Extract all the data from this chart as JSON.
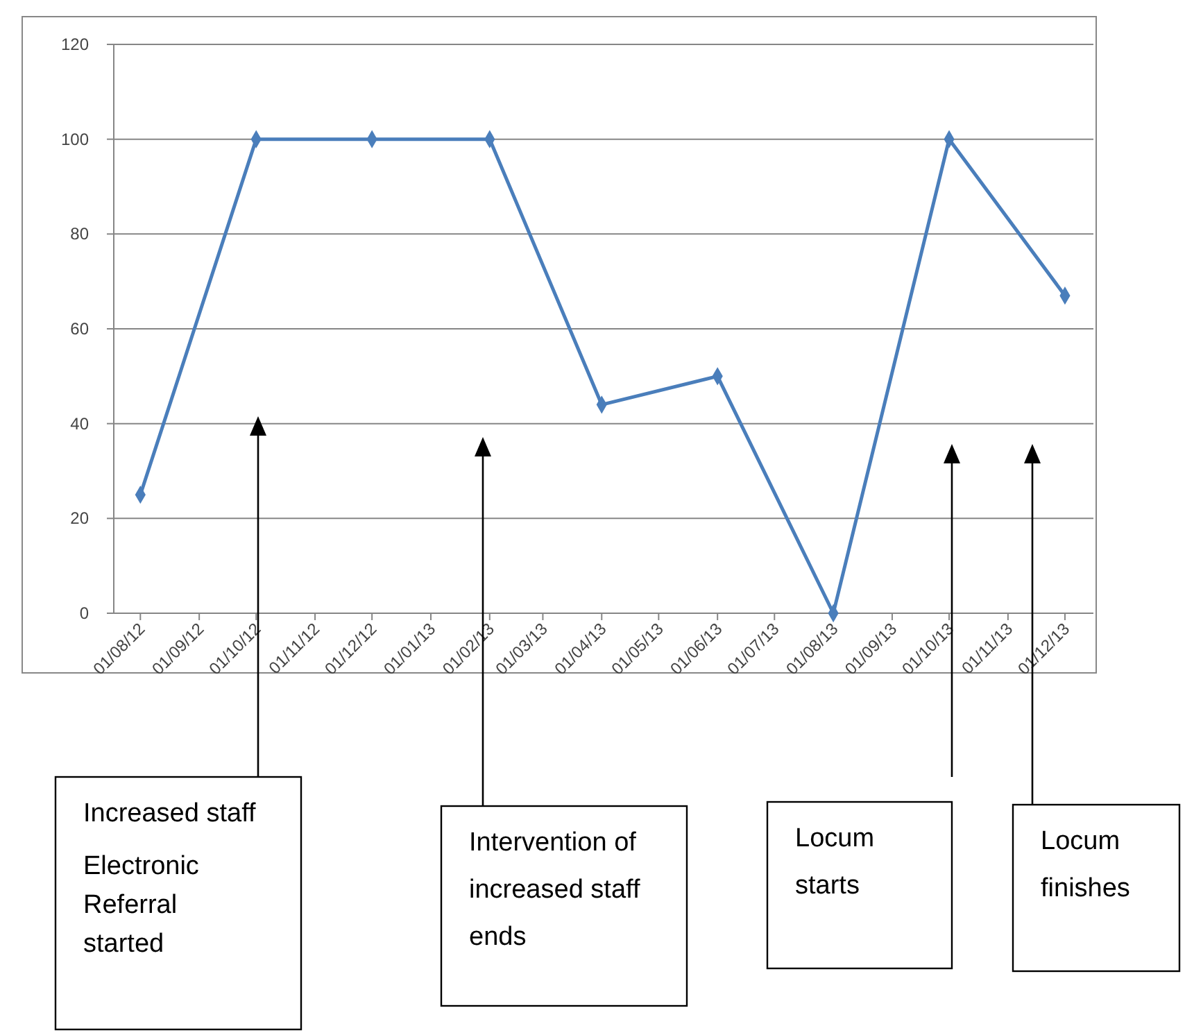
{
  "chart_data": {
    "type": "line",
    "x": [
      "2012-08",
      "2012-10",
      "2012-12",
      "2013-02",
      "2013-04",
      "2013-06",
      "2013-08",
      "2013-10",
      "2013-12"
    ],
    "series": [
      {
        "color": "#4a7ebb",
        "values": [
          25,
          100,
          100,
          100,
          44,
          50,
          0,
          100,
          67
        ]
      }
    ],
    "marker": "diamond",
    "grid": "y",
    "xlim": [
      "2012-07-18",
      "2013-12-16"
    ],
    "xticks": [
      {
        "value": "2012-08",
        "label": "01/08/12"
      },
      {
        "value": "2012-09",
        "label": "01/09/12"
      },
      {
        "value": "2012-10",
        "label": "01/10/12"
      },
      {
        "value": "2012-11",
        "label": "01/11/12"
      },
      {
        "value": "2012-12",
        "label": "01/12/12"
      },
      {
        "value": "2013-01",
        "label": "01/01/13"
      },
      {
        "value": "2013-02",
        "label": "01/02/13"
      },
      {
        "value": "2013-03",
        "label": "01/03/13"
      },
      {
        "value": "2013-04",
        "label": "01/04/13"
      },
      {
        "value": "2013-05",
        "label": "01/05/13"
      },
      {
        "value": "2013-06",
        "label": "01/06/13"
      },
      {
        "value": "2013-07",
        "label": "01/07/13"
      },
      {
        "value": "2013-08",
        "label": "01/08/13"
      },
      {
        "value": "2013-09",
        "label": "01/09/13"
      },
      {
        "value": "2013-10",
        "label": "01/10/13"
      },
      {
        "value": "2013-11",
        "label": "01/11/13"
      },
      {
        "value": "2013-12",
        "label": "01/12/13"
      }
    ],
    "ylim": [
      0,
      120
    ],
    "yticks": [
      0,
      20,
      40,
      60,
      80,
      100,
      120
    ],
    "annotations": [
      "Increased staff\nElectronic Referral started",
      "Intervention of increased staff ends",
      "Locum starts",
      "Locum finishes"
    ]
  }
}
